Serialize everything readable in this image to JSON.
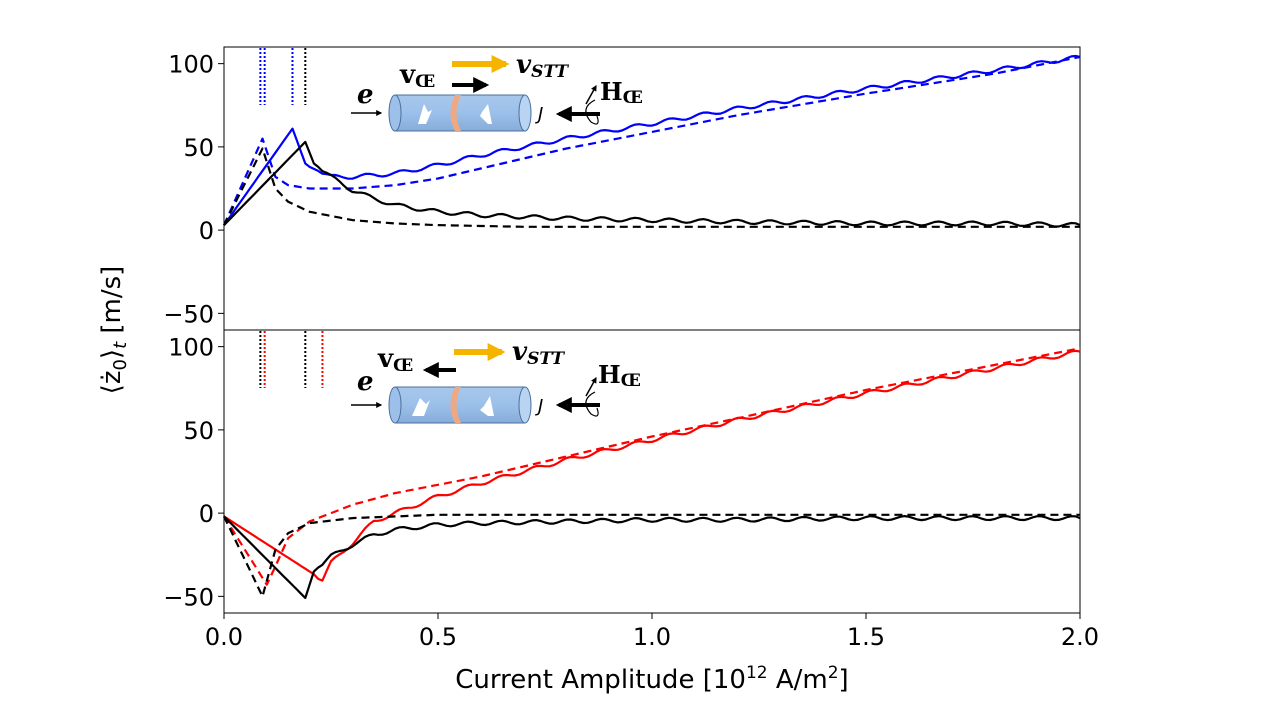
{
  "chart_data": [
    {
      "type": "line",
      "panel": "top",
      "xlabel": "",
      "ylabel": "⟨ż₀⟩t [m/s]",
      "xlim": [
        0.0,
        2.0
      ],
      "ylim": [
        -60,
        110
      ],
      "yticks": [
        -50,
        0,
        50,
        100
      ],
      "grid": false,
      "series": [
        {
          "color": "#0000ff",
          "style": "solid",
          "x": [
            0.0,
            0.16,
            0.19,
            0.2,
            0.25,
            0.3,
            0.35,
            0.4,
            0.5,
            0.6,
            0.8,
            1.0,
            1.2,
            1.5,
            1.8,
            2.0
          ],
          "y": [
            3,
            61,
            40,
            38,
            32,
            32,
            33,
            34,
            39,
            45,
            55,
            64,
            73,
            85,
            96,
            104
          ]
        },
        {
          "color": "#0000ff",
          "style": "dashed",
          "x": [
            0.0,
            0.09,
            0.12,
            0.15,
            0.2,
            0.3,
            0.4,
            0.5,
            0.6,
            0.8,
            1.0,
            1.2,
            1.5,
            1.8,
            2.0
          ],
          "y": [
            3,
            55,
            32,
            27,
            25,
            25,
            27,
            31,
            37,
            49,
            59,
            69,
            82,
            94,
            104
          ]
        },
        {
          "color": "#000000",
          "style": "solid",
          "x": [
            0.0,
            0.19,
            0.21,
            0.25,
            0.3,
            0.35,
            0.4,
            0.5,
            0.6,
            0.8,
            1.0,
            1.2,
            1.5,
            1.8,
            2.0
          ],
          "y": [
            3,
            53,
            40,
            32,
            24,
            19,
            15,
            11,
            9,
            7,
            6,
            5,
            4,
            4,
            3
          ]
        },
        {
          "color": "#000000",
          "style": "dashed",
          "x": [
            0.0,
            0.09,
            0.12,
            0.15,
            0.2,
            0.3,
            0.4,
            0.5,
            0.7,
            1.0,
            1.5,
            2.0
          ],
          "y": [
            3,
            49,
            25,
            17,
            11,
            6,
            4,
            3,
            2,
            2,
            2,
            2
          ]
        }
      ],
      "markers": [
        {
          "x": 0.085,
          "color": "#0000ff"
        },
        {
          "x": 0.095,
          "color": "#0000ff"
        },
        {
          "x": 0.16,
          "color": "#0000ff"
        },
        {
          "x": 0.19,
          "color": "#000000"
        }
      ],
      "inset": {
        "e_label": "e",
        "v_ce_label": "v",
        "v_ce_sub": "Œ",
        "v_stt_label": "v",
        "v_stt_sub": "STT",
        "j_label": "J",
        "h_ce_label": "H",
        "h_ce_sub": "Œ",
        "v_ce_direction": "right"
      }
    },
    {
      "type": "line",
      "panel": "bottom",
      "xlabel": "Current Amplitude [10¹² A/m²]",
      "ylabel": "⟨ż₀⟩t [m/s]",
      "xlim": [
        0.0,
        2.0
      ],
      "ylim": [
        -60,
        110
      ],
      "xticks": [
        0.0,
        0.5,
        1.0,
        1.5,
        2.0
      ],
      "yticks": [
        -50,
        0,
        50,
        100
      ],
      "grid": false,
      "series": [
        {
          "color": "#ff0000",
          "style": "solid",
          "x": [
            0.0,
            0.23,
            0.25,
            0.3,
            0.35,
            0.4,
            0.5,
            0.6,
            0.8,
            1.0,
            1.2,
            1.5,
            1.8,
            2.0
          ],
          "y": [
            -2,
            -40,
            -30,
            -18,
            -5,
            0,
            10,
            18,
            32,
            44,
            56,
            72,
            87,
            97
          ]
        },
        {
          "color": "#ff0000",
          "style": "dashed",
          "x": [
            0.0,
            0.1,
            0.12,
            0.15,
            0.2,
            0.3,
            0.4,
            0.5,
            0.6,
            0.8,
            1.0,
            1.2,
            1.5,
            1.8,
            2.0
          ],
          "y": [
            -2,
            -43,
            -32,
            -15,
            -5,
            5,
            12,
            17,
            22,
            34,
            46,
            57,
            74,
            89,
            99
          ]
        },
        {
          "color": "#000000",
          "style": "solid",
          "x": [
            0.0,
            0.19,
            0.21,
            0.25,
            0.3,
            0.35,
            0.4,
            0.5,
            0.6,
            0.8,
            1.0,
            1.2,
            1.5,
            1.8,
            2.0
          ],
          "y": [
            -2,
            -51,
            -35,
            -26,
            -19,
            -13,
            -10,
            -7,
            -6,
            -5,
            -4,
            -4,
            -3,
            -3,
            -3
          ]
        },
        {
          "color": "#000000",
          "style": "dashed",
          "x": [
            0.0,
            0.09,
            0.12,
            0.15,
            0.2,
            0.3,
            0.4,
            0.5,
            0.7,
            1.0,
            1.5,
            2.0
          ],
          "y": [
            -2,
            -50,
            -22,
            -12,
            -6,
            -3,
            -2,
            -1,
            -1,
            -1,
            -1,
            -1
          ]
        }
      ],
      "markers": [
        {
          "x": 0.085,
          "color": "#000000"
        },
        {
          "x": 0.095,
          "color": "#ff0000"
        },
        {
          "x": 0.19,
          "color": "#000000"
        },
        {
          "x": 0.23,
          "color": "#ff0000"
        }
      ],
      "inset": {
        "e_label": "e",
        "v_ce_label": "v",
        "v_ce_sub": "Œ",
        "v_stt_label": "v",
        "v_stt_sub": "STT",
        "j_label": "J",
        "h_ce_label": "H",
        "h_ce_sub": "Œ",
        "v_ce_direction": "left"
      }
    }
  ],
  "labels": {
    "ylabel_main": "⟨ż",
    "ylabel_sub0": "0",
    "ylabel_rest": "⟩",
    "ylabel_subt": "t",
    "ylabel_unit": " [m/s]",
    "xlabel_main": "Current Amplitude [10",
    "xlabel_exp1": "12",
    "xlabel_mid": " A/m",
    "xlabel_exp2": "2",
    "xlabel_end": "]"
  }
}
